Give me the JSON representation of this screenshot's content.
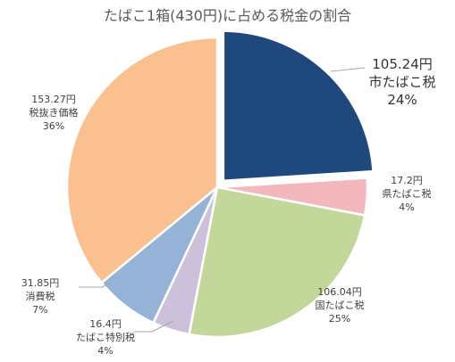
{
  "chart_data": {
    "type": "pie",
    "title": "たばこ1箱(430円)に占める税金の割合",
    "slices": [
      {
        "amount": "105.24円",
        "name": "市たばこ税",
        "percent": "24%",
        "value": 24,
        "color": "#1F497D",
        "exploded": true
      },
      {
        "amount": "17.2円",
        "name": "県たばこ税",
        "percent": "4%",
        "value": 4,
        "color": "#F2B8BD",
        "exploded": false
      },
      {
        "amount": "106.04円",
        "name": "国たばこ税",
        "percent": "25%",
        "value": 25,
        "color": "#C4D79B",
        "exploded": false
      },
      {
        "amount": "16.4円",
        "name": "たばこ特別税",
        "percent": "4%",
        "value": 4,
        "color": "#CCC0DA",
        "exploded": false
      },
      {
        "amount": "31.85円",
        "name": "消費税",
        "percent": "7%",
        "value": 7,
        "color": "#95B3D7",
        "exploded": false
      },
      {
        "amount": "153.27円",
        "name": "税抜き価格",
        "percent": "36%",
        "value": 36,
        "color": "#FAC090",
        "exploded": false
      }
    ]
  }
}
